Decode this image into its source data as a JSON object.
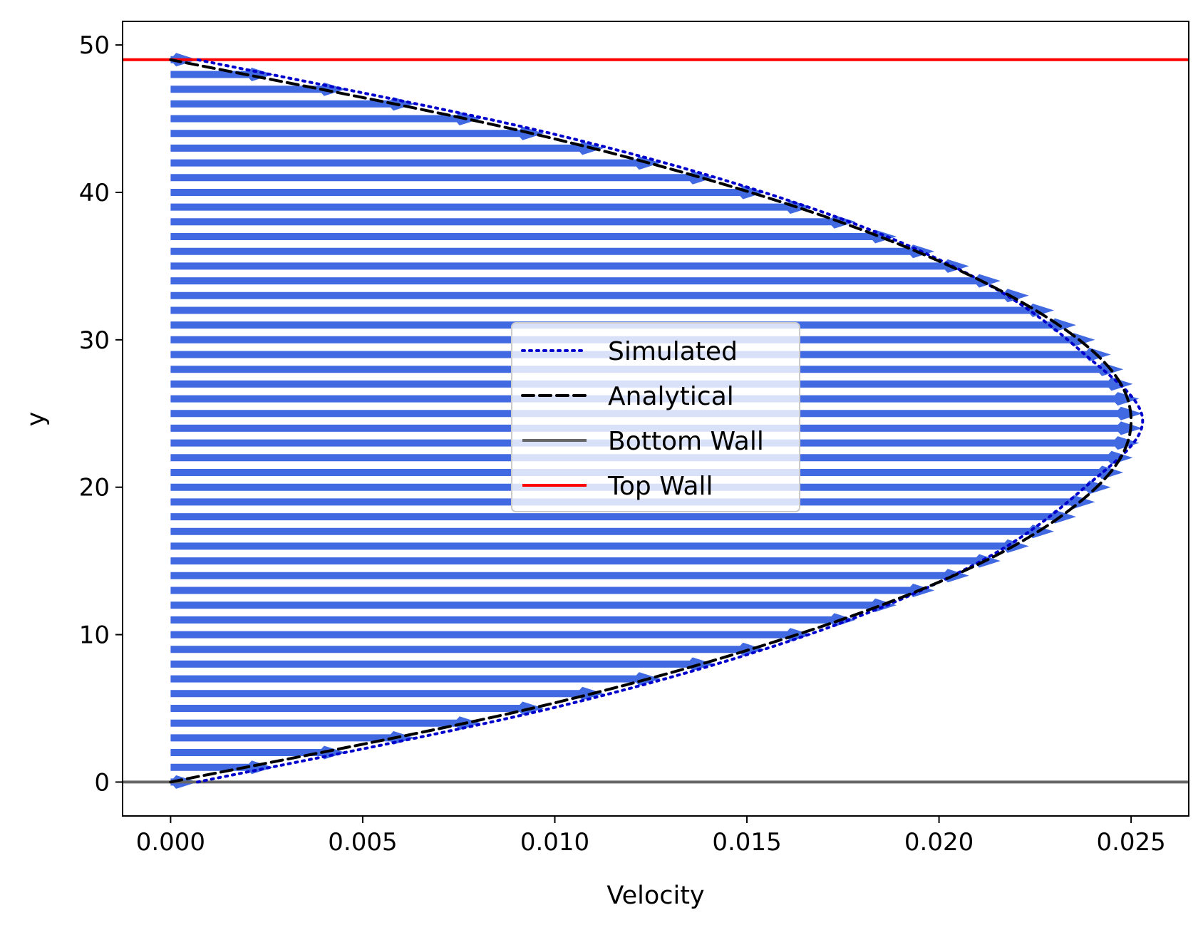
{
  "chart_data": {
    "type": "line",
    "title": "",
    "xlabel": "Velocity",
    "ylabel": "y",
    "xlim": [
      -0.00125,
      0.0265
    ],
    "ylim": [
      -2.3,
      51.6
    ],
    "xticks": [
      0.0,
      0.005,
      0.01,
      0.015,
      0.02,
      0.025
    ],
    "xtick_labels": [
      "0.000",
      "0.005",
      "0.010",
      "0.015",
      "0.020",
      "0.025"
    ],
    "yticks": [
      0,
      10,
      20,
      30,
      40,
      50
    ],
    "ytick_labels": [
      "0",
      "10",
      "20",
      "30",
      "40",
      "50"
    ],
    "grid": false,
    "legend": {
      "position": "center",
      "entries": [
        {
          "label": "Simulated",
          "style": "dotted",
          "color": "#0000cc"
        },
        {
          "label": "Analytical",
          "style": "dashed",
          "color": "#000000"
        },
        {
          "label": "Bottom Wall",
          "style": "solid",
          "color": "#666666"
        },
        {
          "label": "Top Wall",
          "style": "solid",
          "color": "#ff0000"
        }
      ]
    },
    "walls": {
      "bottom_y": 0,
      "top_y": 49
    },
    "quiver": {
      "color": "#4169e1",
      "y_start": 0,
      "y_end": 49,
      "y_step": 1,
      "simulated_peak_velocity": 0.0253,
      "simulated_wall_velocity": 0.0007,
      "note_shape": "parabolic"
    },
    "series": [
      {
        "name": "Simulated",
        "y": [
          0,
          5,
          10,
          15,
          20,
          24.5,
          29,
          34,
          39,
          44,
          49
        ],
        "values": [
          0.0007,
          0.0099,
          0.0166,
          0.0211,
          0.0238,
          0.0253,
          0.0238,
          0.0211,
          0.0166,
          0.0099,
          0.0007
        ]
      },
      {
        "name": "Analytical",
        "y": [
          0,
          5,
          10,
          15,
          20,
          24.5,
          29,
          34,
          39,
          44,
          49
        ],
        "values": [
          0.0,
          0.0094,
          0.0163,
          0.0212,
          0.0241,
          0.025,
          0.0241,
          0.0211,
          0.0163,
          0.0094,
          0.0
        ]
      }
    ]
  }
}
